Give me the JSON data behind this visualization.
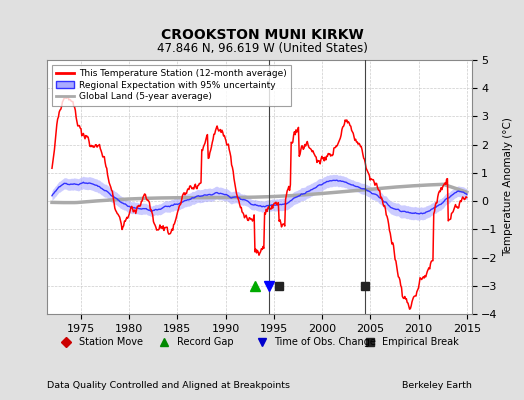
{
  "title": "CROOKSTON MUNI KIRKW",
  "subtitle": "47.846 N, 96.619 W (United States)",
  "xlabel_left": "Data Quality Controlled and Aligned at Breakpoints",
  "xlabel_right": "Berkeley Earth",
  "ylabel": "Temperature Anomaly (°C)",
  "xlim": [
    1971.5,
    2015.5
  ],
  "ylim": [
    -4,
    5
  ],
  "yticks": [
    -4,
    -3,
    -2,
    -1,
    0,
    1,
    2,
    3,
    4,
    5
  ],
  "xticks": [
    1975,
    1980,
    1985,
    1990,
    1995,
    2000,
    2005,
    2010,
    2015
  ],
  "background_color": "#e0e0e0",
  "plot_bg_color": "#ffffff",
  "red_line_color": "#ff0000",
  "blue_line_color": "#3333ff",
  "blue_fill_color": "#aaaaff",
  "gray_line_color": "#aaaaaa",
  "grid_color": "#cccccc",
  "record_gap_color": "#00aa00",
  "obs_change_color": "#0000ff",
  "empirical_break_color": "#222222",
  "vline_color": "#444444",
  "markers": {
    "station_move": [],
    "record_gap": [
      1993.0
    ],
    "obs_change": [
      1994.5
    ],
    "empirical_break": [
      1995.5,
      2004.5
    ]
  },
  "vlines": [
    1994.5,
    2004.5
  ],
  "seed": 12
}
